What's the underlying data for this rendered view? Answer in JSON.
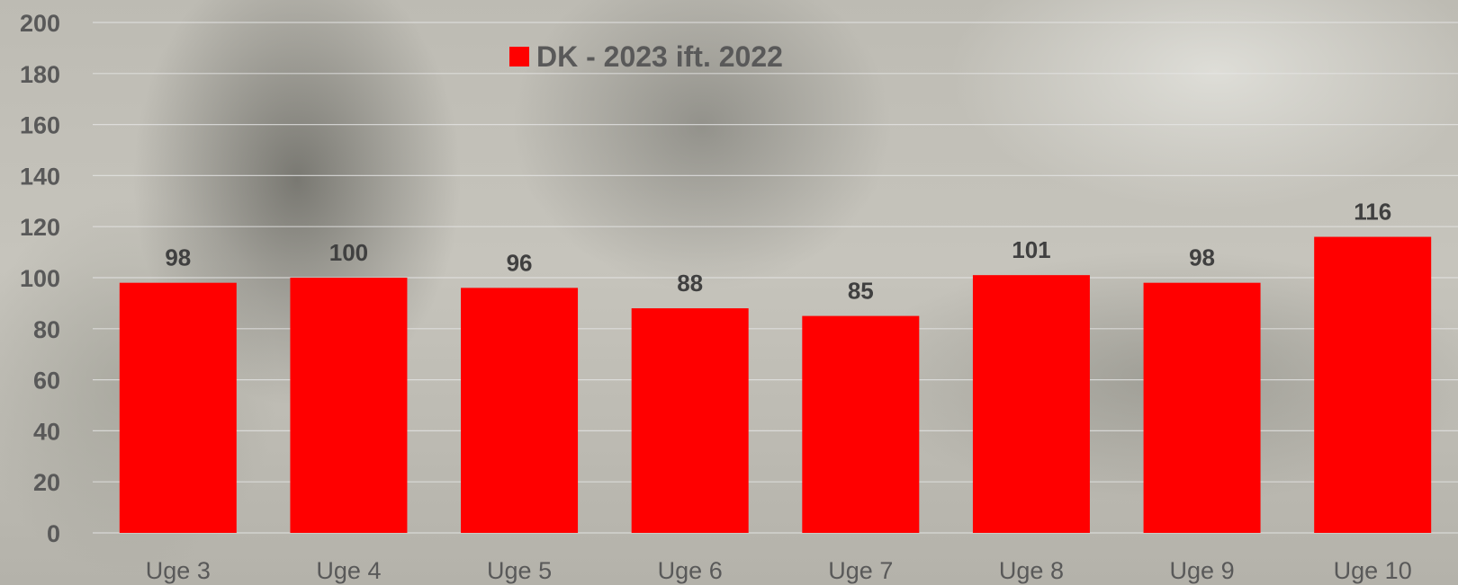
{
  "chart_data": {
    "type": "bar",
    "categories": [
      "Uge 3",
      "Uge 4",
      "Uge 5",
      "Uge 6",
      "Uge 7",
      "Uge 8",
      "Uge 9",
      "Uge 10"
    ],
    "series": [
      {
        "name": "DK - 2023 ift. 2022",
        "values": [
          98,
          100,
          96,
          88,
          85,
          101,
          98,
          116
        ],
        "color": "#ff0000"
      }
    ],
    "ylim": [
      0,
      200
    ],
    "yticks": [
      0,
      20,
      40,
      60,
      80,
      100,
      120,
      140,
      160,
      180,
      200
    ],
    "grid": true,
    "legend_position": "top",
    "data_labels": true
  }
}
